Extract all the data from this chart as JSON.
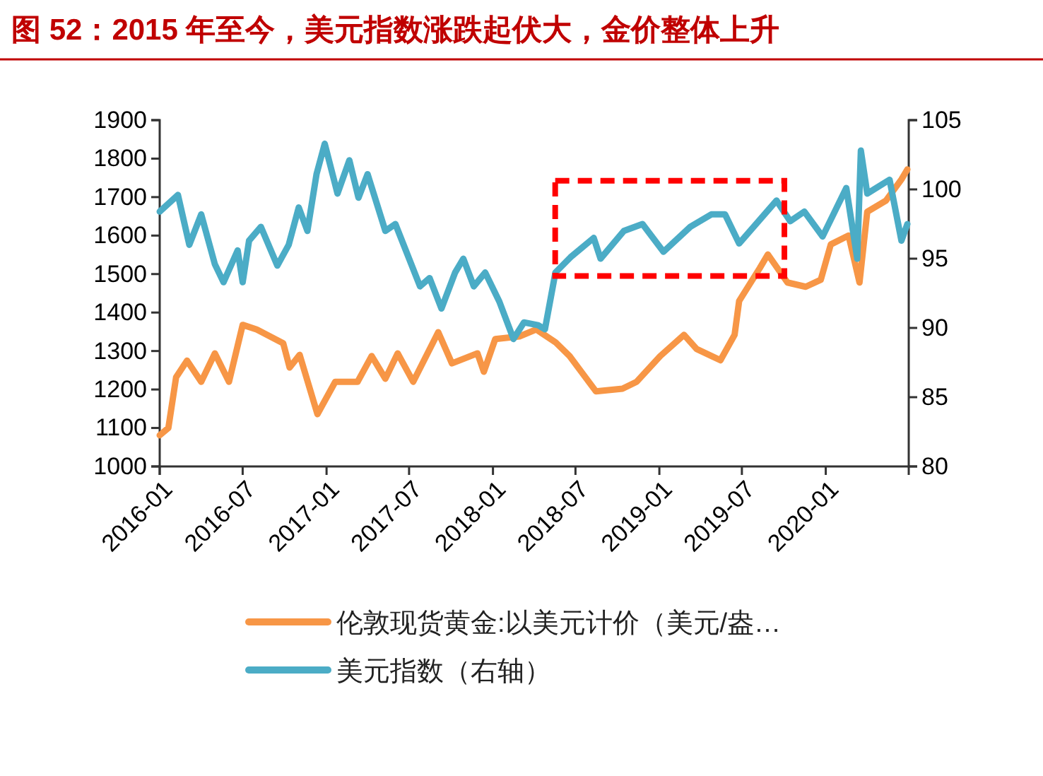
{
  "chart_data": {
    "type": "line",
    "title": "图 52：2015 年至今，美元指数涨跌起伏大，金价整体上升",
    "xlim": [
      "2016-01-01",
      "2020-07-01"
    ],
    "xticks": [
      {
        "value": "2016-01-01",
        "label": "2016-01"
      },
      {
        "value": "2016-07-01",
        "label": "2016-07"
      },
      {
        "value": "2017-01-01",
        "label": "2017-01"
      },
      {
        "value": "2017-07-01",
        "label": "2017-07"
      },
      {
        "value": "2018-01-01",
        "label": "2018-01"
      },
      {
        "value": "2018-07-01",
        "label": "2018-07"
      },
      {
        "value": "2019-01-01",
        "label": "2019-01"
      },
      {
        "value": "2019-07-01",
        "label": "2019-07"
      },
      {
        "value": "2020-01-01",
        "label": "2020-01"
      }
    ],
    "ylim": [
      1000,
      1900
    ],
    "yticks": [
      1000,
      1100,
      1200,
      1300,
      1400,
      1500,
      1600,
      1700,
      1800,
      1900
    ],
    "y2lim": [
      80,
      105
    ],
    "y2ticks": [
      80,
      85,
      90,
      95,
      100,
      105
    ],
    "grid": false,
    "legend": "bottom",
    "line_style": "solid",
    "series": [
      {
        "name": "伦敦现货黄金:以美元计价（美元/盎…",
        "color": "#f79646",
        "x": [
          "2016-01-01",
          "2016-01-20",
          "2016-02-06",
          "2016-03-01",
          "2016-04-01",
          "2016-05-01",
          "2016-06-01",
          "2016-07-01",
          "2016-08-01",
          "2016-09-28",
          "2016-10-12",
          "2016-11-03",
          "2016-12-12",
          "2017-01-20",
          "2017-03-10",
          "2017-04-10",
          "2017-05-10",
          "2017-06-06",
          "2017-07-10",
          "2017-09-03",
          "2017-10-03",
          "2017-11-28",
          "2017-12-12",
          "2018-01-06",
          "2018-02-28",
          "2018-04-06",
          "2018-05-18",
          "2018-06-18",
          "2018-08-15",
          "2018-10-12",
          "2018-11-12",
          "2019-01-03",
          "2019-02-24",
          "2019-03-24",
          "2019-05-15",
          "2019-06-15",
          "2019-06-25",
          "2019-08-09",
          "2019-08-27",
          "2019-10-09",
          "2019-11-18",
          "2019-12-21",
          "2020-01-12",
          "2020-02-20",
          "2020-03-15",
          "2020-04-01",
          "2020-05-12",
          "2020-06-15",
          "2020-06-28"
        ],
        "values": [
          1081,
          1100,
          1232,
          1275,
          1220,
          1294,
          1220,
          1368,
          1356,
          1320,
          1257,
          1290,
          1136,
          1220,
          1220,
          1287,
          1228,
          1294,
          1220,
          1349,
          1268,
          1294,
          1246,
          1331,
          1338,
          1356,
          1323,
          1287,
          1195,
          1202,
          1220,
          1287,
          1342,
          1305,
          1276,
          1342,
          1430,
          1515,
          1551,
          1478,
          1467,
          1485,
          1577,
          1600,
          1478,
          1662,
          1691,
          1746,
          1772
        ]
      },
      {
        "name": "美元指数（右轴）",
        "color": "#4bacc6",
        "axis": "y2",
        "x": [
          "2016-01-01",
          "2016-02-10",
          "2016-03-06",
          "2016-04-01",
          "2016-05-01",
          "2016-05-20",
          "2016-06-20",
          "2016-07-01",
          "2016-07-15",
          "2016-08-10",
          "2016-09-15",
          "2016-10-10",
          "2016-11-01",
          "2016-11-20",
          "2016-12-10",
          "2016-12-28",
          "2017-01-25",
          "2017-02-20",
          "2017-03-12",
          "2017-04-01",
          "2017-05-10",
          "2017-06-01",
          "2017-07-25",
          "2017-08-15",
          "2017-09-10",
          "2017-10-10",
          "2017-10-28",
          "2017-11-20",
          "2017-12-15",
          "2018-01-15",
          "2018-02-15",
          "2018-03-10",
          "2018-04-10",
          "2018-04-25",
          "2018-05-18",
          "2018-06-20",
          "2018-08-10",
          "2018-08-25",
          "2018-10-15",
          "2018-11-25",
          "2019-01-10",
          "2019-03-10",
          "2019-04-25",
          "2019-05-25",
          "2019-06-25",
          "2019-09-15",
          "2019-10-15",
          "2019-11-15",
          "2019-12-25",
          "2020-02-15",
          "2020-03-10",
          "2020-03-18",
          "2020-04-01",
          "2020-05-20",
          "2020-06-15",
          "2020-06-28"
        ],
        "values": [
          98.4,
          99.6,
          96.0,
          98.2,
          94.6,
          93.3,
          95.6,
          93.3,
          96.3,
          97.3,
          94.5,
          96.0,
          98.7,
          97.0,
          101.1,
          103.3,
          99.7,
          102.1,
          99.4,
          101.1,
          97.0,
          97.5,
          93.0,
          93.6,
          91.4,
          94.0,
          95.0,
          93.0,
          94.0,
          91.9,
          89.2,
          90.4,
          90.2,
          89.9,
          94.0,
          95.1,
          96.5,
          95.0,
          97.0,
          97.5,
          95.5,
          97.3,
          98.2,
          98.2,
          96.1,
          99.2,
          97.7,
          98.4,
          96.6,
          100.1,
          95.0,
          102.8,
          99.7,
          100.7,
          96.3,
          97.5
        ]
      }
    ]
  }
}
